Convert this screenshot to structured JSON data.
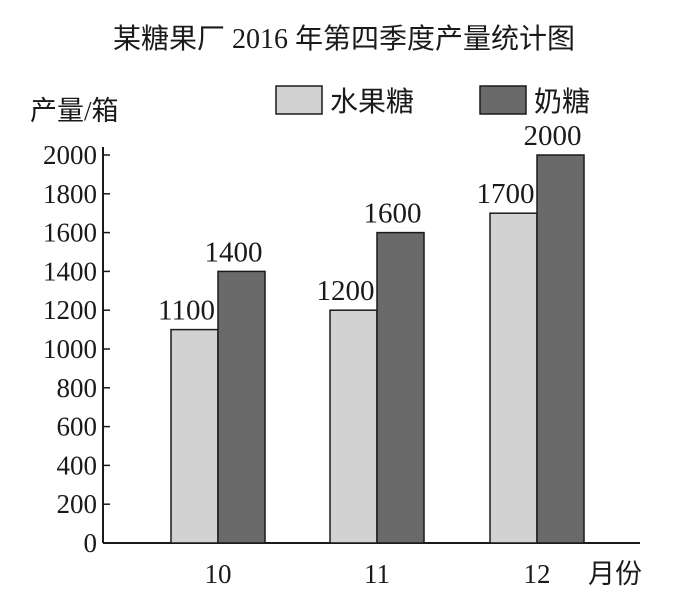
{
  "chart_data": {
    "type": "bar",
    "title": "某糖果厂 2016 年第四季度产量统计图",
    "ylabel": "产量/箱",
    "xlabel": "月份",
    "categories": [
      "10",
      "11",
      "12"
    ],
    "series": [
      {
        "name": "水果糖",
        "values": [
          1100,
          1200,
          1700
        ],
        "color": "#d2d2d2"
      },
      {
        "name": "奶糖",
        "values": [
          1400,
          1600,
          2000
        ],
        "color": "#6a6a6a"
      }
    ],
    "ylim": [
      0,
      2000
    ],
    "yticks": [
      0,
      200,
      400,
      600,
      800,
      1000,
      1200,
      1400,
      1600,
      1800,
      2000
    ],
    "legend": "top-right",
    "grid": false
  }
}
